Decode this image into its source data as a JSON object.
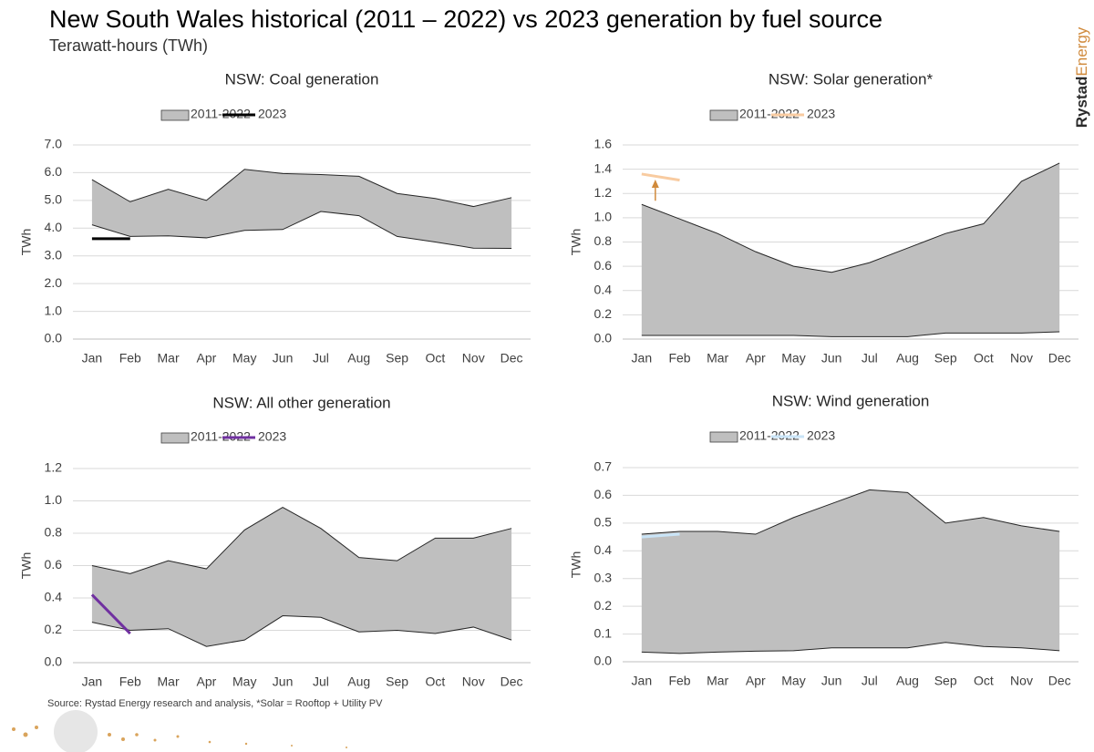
{
  "title": "New South Wales historical (2011 – 2022) vs 2023 generation by fuel source",
  "subtitle": "Terawatt-hours (TWh)",
  "source": "Source: Rystad Energy research and analysis, *Solar = Rooftop + Utility PV",
  "brand": [
    "Rystad",
    "Energy"
  ],
  "chart_data": [
    {
      "type": "range",
      "title": "NSW: Coal  generation",
      "y_label": "TWh",
      "categories": [
        "Jan",
        "Feb",
        "Mar",
        "Apr",
        "May",
        "Jun",
        "Jul",
        "Aug",
        "Sep",
        "Oct",
        "Nov",
        "Dec"
      ],
      "series": [
        {
          "name": "2011-2022",
          "color": "#bfbfbf",
          "low": [
            4.12,
            3.7,
            3.72,
            3.65,
            3.92,
            3.95,
            4.6,
            4.45,
            3.7,
            3.5,
            3.28,
            3.27
          ],
          "high": [
            5.75,
            4.95,
            5.4,
            5.0,
            6.12,
            5.97,
            5.93,
            5.87,
            5.25,
            5.07,
            4.78,
            5.1
          ]
        },
        {
          "name": "2023",
          "color": "#000000",
          "values": [
            3.62,
            3.62,
            null,
            null,
            null,
            null,
            null,
            null,
            null,
            null,
            null,
            null
          ]
        }
      ],
      "ylim": [
        0,
        7
      ],
      "yticks": [
        {
          "value": 0,
          "label": "0.0"
        },
        {
          "value": 1,
          "label": "1.0"
        },
        {
          "value": 2,
          "label": "2.0"
        },
        {
          "value": 3,
          "label": "3.0"
        },
        {
          "value": 4,
          "label": "4.0"
        },
        {
          "value": 5,
          "label": "5.0"
        },
        {
          "value": 6,
          "label": "6.0"
        },
        {
          "value": 7,
          "label": "7.0"
        }
      ],
      "grid": true
    },
    {
      "type": "range",
      "title": "NSW: Solar generation*",
      "y_label": "TWh",
      "categories": [
        "Jan",
        "Feb",
        "Mar",
        "Apr",
        "May",
        "Jun",
        "Jul",
        "Aug",
        "Sep",
        "Oct",
        "Nov",
        "Dec"
      ],
      "series": [
        {
          "name": "2011-2022",
          "color": "#bfbfbf",
          "low": [
            0.03,
            0.03,
            0.03,
            0.03,
            0.03,
            0.02,
            0.02,
            0.02,
            0.05,
            0.05,
            0.05,
            0.06
          ],
          "high": [
            1.11,
            0.99,
            0.87,
            0.72,
            0.6,
            0.55,
            0.63,
            0.75,
            0.87,
            0.95,
            1.3,
            1.45
          ]
        },
        {
          "name": "2023",
          "color": "#f8cba0",
          "values": [
            1.36,
            1.31,
            null,
            null,
            null,
            null,
            null,
            null,
            null,
            null,
            null,
            null
          ]
        }
      ],
      "ylim": [
        0,
        1.6
      ],
      "yticks": [
        {
          "value": 0,
          "label": "0.0"
        },
        0.2,
        0.4,
        0.6,
        0.8,
        {
          "value": 1,
          "label": "1.0"
        },
        1.2,
        1.4,
        1.6
      ],
      "grid": true,
      "arrow": true
    },
    {
      "type": "range",
      "title": "NSW: All other  generation",
      "y_label": "TWh",
      "categories": [
        "Jan",
        "Feb",
        "Mar",
        "Apr",
        "May",
        "Jun",
        "Jul",
        "Aug",
        "Sep",
        "Oct",
        "Nov",
        "Dec"
      ],
      "series": [
        {
          "name": "2011-2022",
          "color": "#bfbfbf",
          "low": [
            0.25,
            0.2,
            0.21,
            0.1,
            0.14,
            0.29,
            0.28,
            0.19,
            0.2,
            0.18,
            0.22,
            0.14
          ],
          "high": [
            0.6,
            0.55,
            0.63,
            0.58,
            0.82,
            0.96,
            0.83,
            0.65,
            0.63,
            0.77,
            0.77,
            0.83
          ]
        },
        {
          "name": "2023",
          "color": "#7030a0",
          "values": [
            0.42,
            0.18,
            null,
            null,
            null,
            null,
            null,
            null,
            null,
            null,
            null,
            null
          ]
        }
      ],
      "ylim": [
        0,
        1.2
      ],
      "yticks": [
        {
          "value": 0,
          "label": "0.0"
        },
        0.2,
        0.4,
        0.6,
        0.8,
        {
          "value": 1,
          "label": "1.0"
        },
        1.2
      ],
      "grid": true
    },
    {
      "type": "range",
      "title": "NSW: Wind  generation",
      "y_label": "TWh",
      "categories": [
        "Jan",
        "Feb",
        "Mar",
        "Apr",
        "May",
        "Jun",
        "Jul",
        "Aug",
        "Sep",
        "Oct",
        "Nov",
        "Dec"
      ],
      "series": [
        {
          "name": "2011-2022",
          "color": "#bfbfbf",
          "low": [
            0.035,
            0.03,
            0.035,
            0.038,
            0.04,
            0.05,
            0.05,
            0.05,
            0.07,
            0.055,
            0.05,
            0.04
          ],
          "high": [
            0.46,
            0.47,
            0.47,
            0.46,
            0.52,
            0.57,
            0.62,
            0.61,
            0.5,
            0.52,
            0.49,
            0.47
          ]
        },
        {
          "name": "2023",
          "color": "#c9e4f7",
          "values": [
            0.45,
            0.46,
            null,
            null,
            null,
            null,
            null,
            null,
            null,
            null,
            null,
            null
          ]
        }
      ],
      "ylim": [
        0,
        0.7
      ],
      "yticks": [
        {
          "value": 0,
          "label": "0.0"
        },
        0.1,
        0.2,
        0.3,
        0.4,
        0.5,
        0.6,
        0.7
      ],
      "grid": true
    }
  ]
}
